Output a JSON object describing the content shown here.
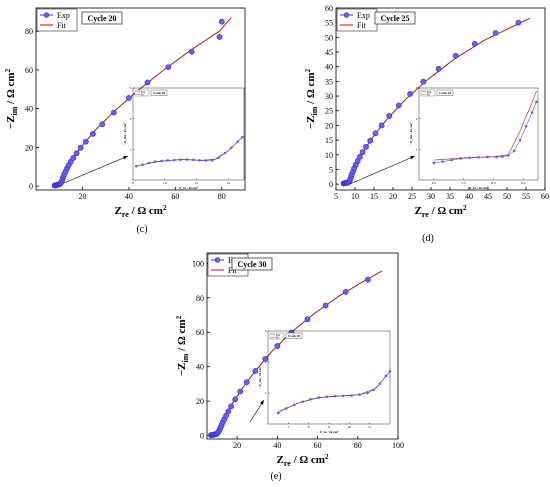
{
  "colors": {
    "exp": "#3a2fd0",
    "exp_fill": "#6a5ef0",
    "fit": "#c0392b",
    "fit_dark": "#3a1a10"
  },
  "chart_data": [
    {
      "id": "c",
      "type": "scatter",
      "caption": "(c)",
      "legend": [
        "Exp",
        "Fit"
      ],
      "label": "Cycle 20",
      "xlim": [
        0,
        90
      ],
      "ylim": [
        -2,
        92
      ],
      "xticks": [
        20,
        40,
        60,
        80
      ],
      "yticks": [
        0,
        20,
        40,
        60,
        80
      ],
      "xlabel_main": "Z",
      "xlabel_sub": "re",
      "xlabel_unit": " / Ω cm",
      "ylabel_main": "−Z",
      "ylabel_sub": "im",
      "ylabel_unit": " / Ω cm",
      "exp": [
        [
          8.0,
          0.3
        ],
        [
          8.3,
          0.4
        ],
        [
          8.6,
          0.5
        ],
        [
          8.9,
          0.6
        ],
        [
          9.2,
          0.7
        ],
        [
          9.5,
          0.8
        ],
        [
          9.8,
          0.9
        ],
        [
          10.1,
          1.0
        ],
        [
          10.4,
          1.2
        ],
        [
          10.7,
          1.6
        ],
        [
          11.0,
          2.3
        ],
        [
          11.3,
          3.2
        ],
        [
          11.6,
          4.2
        ],
        [
          11.9,
          5.2
        ],
        [
          12.3,
          6.4
        ],
        [
          12.8,
          7.7
        ],
        [
          13.4,
          9.2
        ],
        [
          14.1,
          10.8
        ],
        [
          15.0,
          12.6
        ],
        [
          16.1,
          14.6
        ],
        [
          17.5,
          17.0
        ],
        [
          19.2,
          19.8
        ],
        [
          21.5,
          23.0
        ],
        [
          24.5,
          27.0
        ],
        [
          28.5,
          32.0
        ],
        [
          33.5,
          38.0
        ],
        [
          40.0,
          45.5
        ],
        [
          48.0,
          53.5
        ],
        [
          57.0,
          61.5
        ],
        [
          67.0,
          69.5
        ],
        [
          79.0,
          77.0
        ],
        [
          80.0,
          85.0
        ]
      ],
      "fit": [
        [
          8.0,
          0.2
        ],
        [
          10.5,
          1.5
        ],
        [
          13.0,
          8.0
        ],
        [
          16.0,
          14.5
        ],
        [
          20.0,
          21.0
        ],
        [
          26.0,
          29.5
        ],
        [
          34.0,
          39.0
        ],
        [
          44.0,
          49.5
        ],
        [
          55.0,
          60.0
        ],
        [
          67.0,
          70.5
        ],
        [
          79.0,
          80.0
        ],
        [
          84.0,
          87.0
        ]
      ],
      "inset": {
        "label": "Cycle 20",
        "xlim": [
          8,
          15
        ],
        "ylim": [
          0,
          3
        ],
        "xticks": [
          8,
          10,
          12,
          14
        ],
        "yticks": [
          1,
          2,
          3
        ],
        "xlabel": "Z_re / Ω cm²",
        "ylabel": "−Z_im / Ω cm²",
        "exp": [
          [
            8.2,
            0.45
          ],
          [
            8.6,
            0.5
          ],
          [
            9.0,
            0.55
          ],
          [
            9.4,
            0.6
          ],
          [
            9.8,
            0.62
          ],
          [
            10.2,
            0.64
          ],
          [
            10.6,
            0.65
          ],
          [
            11.0,
            0.66
          ],
          [
            11.4,
            0.67
          ],
          [
            11.8,
            0.66
          ],
          [
            12.2,
            0.64
          ],
          [
            12.6,
            0.63
          ],
          [
            13.0,
            0.64
          ],
          [
            13.4,
            0.72
          ],
          [
            13.8,
            0.88
          ],
          [
            14.2,
            1.05
          ],
          [
            14.6,
            1.25
          ],
          [
            14.9,
            1.4
          ]
        ],
        "fit": [
          [
            8.2,
            0.45
          ],
          [
            9.5,
            0.6
          ],
          [
            11.0,
            0.67
          ],
          [
            12.3,
            0.64
          ],
          [
            13.2,
            0.68
          ],
          [
            14.0,
            0.95
          ],
          [
            14.9,
            1.4
          ]
        ]
      }
    },
    {
      "id": "d",
      "type": "scatter",
      "caption": "(d)",
      "legend": [
        "Exp",
        "Fit"
      ],
      "label": "Cycle 25",
      "xlim": [
        5,
        60
      ],
      "ylim": [
        -2,
        60
      ],
      "xticks": [
        5,
        10,
        15,
        20,
        25,
        30,
        35,
        40,
        45,
        50,
        55,
        60
      ],
      "yticks": [
        0,
        5,
        10,
        15,
        20,
        25,
        30,
        35,
        40,
        45,
        50,
        55,
        60
      ],
      "xlabel_main": "Z",
      "xlabel_sub": "re",
      "xlabel_unit": " / Ω cm",
      "ylabel_main": "−Z",
      "ylabel_sub": "im",
      "ylabel_unit": " / Ω cm",
      "exp": [
        [
          7.0,
          0.2
        ],
        [
          7.2,
          0.3
        ],
        [
          7.4,
          0.35
        ],
        [
          7.6,
          0.4
        ],
        [
          7.8,
          0.45
        ],
        [
          8.0,
          0.5
        ],
        [
          8.2,
          0.6
        ],
        [
          8.4,
          0.8
        ],
        [
          8.6,
          1.2
        ],
        [
          8.8,
          1.8
        ],
        [
          9.0,
          2.6
        ],
        [
          9.2,
          3.4
        ],
        [
          9.5,
          4.4
        ],
        [
          9.8,
          5.4
        ],
        [
          10.2,
          6.6
        ],
        [
          10.7,
          7.9
        ],
        [
          11.3,
          9.3
        ],
        [
          12.0,
          10.9
        ],
        [
          12.9,
          12.7
        ],
        [
          14.0,
          14.8
        ],
        [
          15.4,
          17.3
        ],
        [
          17.0,
          20.0
        ],
        [
          19.0,
          23.2
        ],
        [
          21.5,
          26.8
        ],
        [
          24.5,
          30.7
        ],
        [
          28.0,
          34.9
        ],
        [
          32.0,
          39.3
        ],
        [
          36.5,
          43.7
        ],
        [
          41.5,
          47.8
        ],
        [
          47.0,
          51.5
        ],
        [
          53.0,
          55.0
        ]
      ],
      "fit": [
        [
          7.0,
          0.2
        ],
        [
          9.0,
          2.0
        ],
        [
          11.0,
          8.5
        ],
        [
          14.0,
          14.8
        ],
        [
          18.0,
          21.5
        ],
        [
          23.0,
          28.5
        ],
        [
          29.0,
          35.5
        ],
        [
          36.0,
          42.5
        ],
        [
          44.0,
          49.0
        ],
        [
          52.0,
          54.0
        ],
        [
          56.0,
          56.5
        ]
      ],
      "inset": {
        "label": "Cycle 25",
        "xlim": [
          6,
          10
        ],
        "ylim": [
          0,
          3
        ],
        "xticks": [
          6.5,
          7.5,
          8.5,
          9.5
        ],
        "yticks": [
          1,
          2,
          3
        ],
        "xlabel": "Z_re / Ω cm²",
        "ylabel": "−Z_im / Ω cm²",
        "exp": [
          [
            6.5,
            0.55
          ],
          [
            6.8,
            0.6
          ],
          [
            7.1,
            0.65
          ],
          [
            7.4,
            0.7
          ],
          [
            7.7,
            0.72
          ],
          [
            8.0,
            0.74
          ],
          [
            8.3,
            0.75
          ],
          [
            8.6,
            0.75
          ],
          [
            8.8,
            0.76
          ],
          [
            9.0,
            0.8
          ],
          [
            9.2,
            0.95
          ],
          [
            9.4,
            1.3
          ],
          [
            9.6,
            1.75
          ],
          [
            9.8,
            2.2
          ],
          [
            9.95,
            2.55
          ]
        ],
        "fit": [
          [
            6.5,
            0.65
          ],
          [
            7.5,
            0.72
          ],
          [
            8.5,
            0.76
          ],
          [
            9.0,
            0.82
          ],
          [
            9.4,
            1.6
          ],
          [
            9.7,
            2.3
          ],
          [
            9.95,
            2.9
          ]
        ]
      }
    },
    {
      "id": "e",
      "type": "scatter",
      "caption": "(e)",
      "legend": [
        "Exp",
        "Fit"
      ],
      "label": "Cycle 30",
      "xlim": [
        5,
        100
      ],
      "ylim": [
        -2,
        106
      ],
      "xticks": [
        20,
        40,
        60,
        80,
        100
      ],
      "yticks": [
        0,
        20,
        40,
        60,
        80,
        100
      ],
      "xlabel_main": "Z",
      "xlabel_sub": "re",
      "xlabel_unit": " / Ω cm",
      "ylabel_main": "−Z",
      "ylabel_sub": "im",
      "ylabel_unit": " / Ω cm",
      "exp": [
        [
          7.0,
          0.2
        ],
        [
          7.4,
          0.3
        ],
        [
          7.8,
          0.4
        ],
        [
          8.2,
          0.5
        ],
        [
          8.6,
          0.6
        ],
        [
          9.0,
          0.7
        ],
        [
          9.4,
          0.8
        ],
        [
          9.8,
          1.0
        ],
        [
          10.2,
          1.4
        ],
        [
          10.6,
          2.0
        ],
        [
          11.0,
          2.8
        ],
        [
          11.4,
          3.8
        ],
        [
          11.8,
          5.0
        ],
        [
          12.3,
          6.3
        ],
        [
          12.9,
          7.8
        ],
        [
          13.6,
          9.5
        ],
        [
          14.5,
          11.6
        ],
        [
          15.6,
          14.0
        ],
        [
          17.0,
          17.0
        ],
        [
          19.0,
          21.0
        ],
        [
          21.5,
          25.6
        ],
        [
          24.8,
          31.0
        ],
        [
          29.0,
          37.5
        ],
        [
          34.0,
          44.5
        ],
        [
          40.0,
          52.0
        ],
        [
          47.0,
          59.8
        ],
        [
          55.0,
          67.5
        ],
        [
          64.0,
          75.5
        ],
        [
          74.0,
          83.5
        ],
        [
          85.0,
          90.5
        ]
      ],
      "fit": [
        [
          7.0,
          0.2
        ],
        [
          10.0,
          1.0
        ],
        [
          13.0,
          8.5
        ],
        [
          17.0,
          17.5
        ],
        [
          22.0,
          26.5
        ],
        [
          29.0,
          37.5
        ],
        [
          37.0,
          48.5
        ],
        [
          47.0,
          60.0
        ],
        [
          58.0,
          70.5
        ],
        [
          70.0,
          80.5
        ],
        [
          82.0,
          89.0
        ],
        [
          92.0,
          95.5
        ]
      ],
      "inset": {
        "label": "Cycle 30",
        "xlim": [
          6,
          12
        ],
        "ylim": [
          0,
          3
        ],
        "xticks": [
          7,
          8,
          9,
          10,
          11
        ],
        "yticks": [
          1,
          2,
          3
        ],
        "xlabel": "Z_re / Ω cm²",
        "ylabel": "−Z_im / Ω cm²",
        "exp": [
          [
            6.5,
            0.35
          ],
          [
            6.9,
            0.5
          ],
          [
            7.3,
            0.62
          ],
          [
            7.7,
            0.72
          ],
          [
            8.1,
            0.8
          ],
          [
            8.5,
            0.85
          ],
          [
            8.9,
            0.88
          ],
          [
            9.3,
            0.9
          ],
          [
            9.7,
            0.91
          ],
          [
            10.1,
            0.92
          ],
          [
            10.5,
            0.95
          ],
          [
            10.9,
            1.0
          ],
          [
            11.2,
            1.1
          ],
          [
            11.5,
            1.3
          ],
          [
            11.8,
            1.55
          ],
          [
            12.0,
            1.7
          ]
        ],
        "fit": [
          [
            6.5,
            0.4
          ],
          [
            7.5,
            0.68
          ],
          [
            8.5,
            0.85
          ],
          [
            9.5,
            0.9
          ],
          [
            10.5,
            0.95
          ],
          [
            11.3,
            1.15
          ],
          [
            12.0,
            1.7
          ]
        ]
      }
    }
  ]
}
